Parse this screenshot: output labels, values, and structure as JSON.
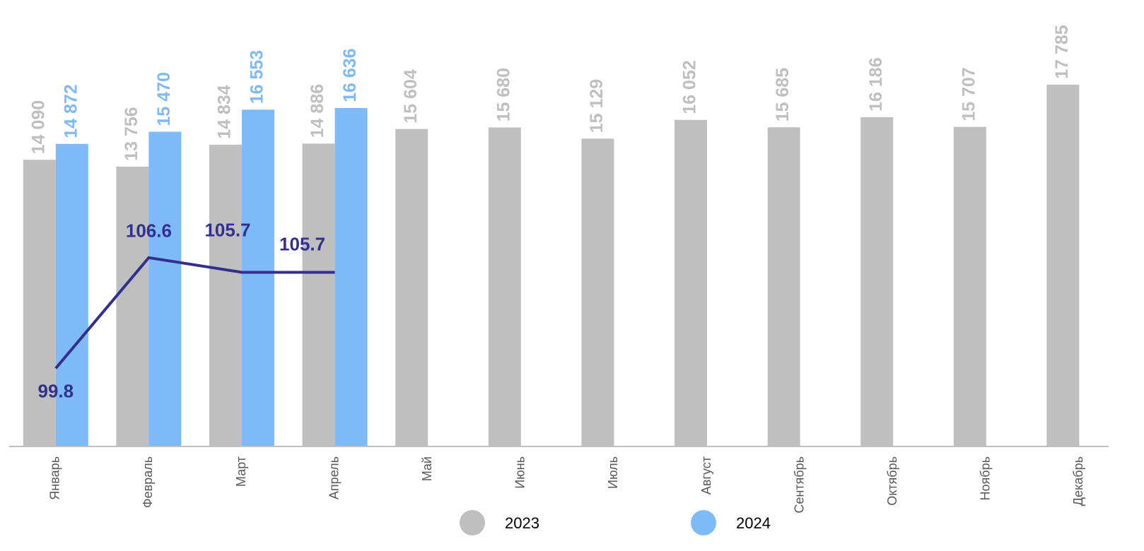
{
  "chart_data": {
    "type": "bar",
    "categories": [
      "Январь",
      "Февраль",
      "Март",
      "Апрель",
      "Май",
      "Июнь",
      "Июль",
      "Август",
      "Сентябрь",
      "Октябрь",
      "Ноябрь",
      "Декабрь"
    ],
    "series": [
      {
        "name": "2023",
        "color": "#bfbfbf",
        "values": [
          14090,
          13756,
          14834,
          14886,
          15604,
          15680,
          15129,
          16052,
          15685,
          16186,
          15707,
          17785
        ],
        "value_labels": [
          "14 090",
          "13 756",
          "14 834",
          "14 886",
          "15 604",
          "15 680",
          "15 129",
          "16 052",
          "15 685",
          "16 186",
          "15 707",
          "17 785"
        ]
      },
      {
        "name": "2024",
        "color": "#7fbaf8",
        "values": [
          14872,
          15470,
          16553,
          16636,
          null,
          null,
          null,
          null,
          null,
          null,
          null,
          null
        ],
        "value_labels": [
          "14 872",
          "15 470",
          "16 553",
          "16 636",
          null,
          null,
          null,
          null,
          null,
          null,
          null,
          null
        ]
      },
      {
        "type": "line",
        "axis": "y2",
        "color": "#332f8f",
        "values": [
          99.8,
          106.6,
          105.7,
          105.7,
          null,
          null,
          null,
          null,
          null,
          null,
          null,
          null
        ]
      }
    ],
    "ylim": [
      0,
      20000
    ],
    "y2lim": [
      95,
      120
    ]
  }
}
